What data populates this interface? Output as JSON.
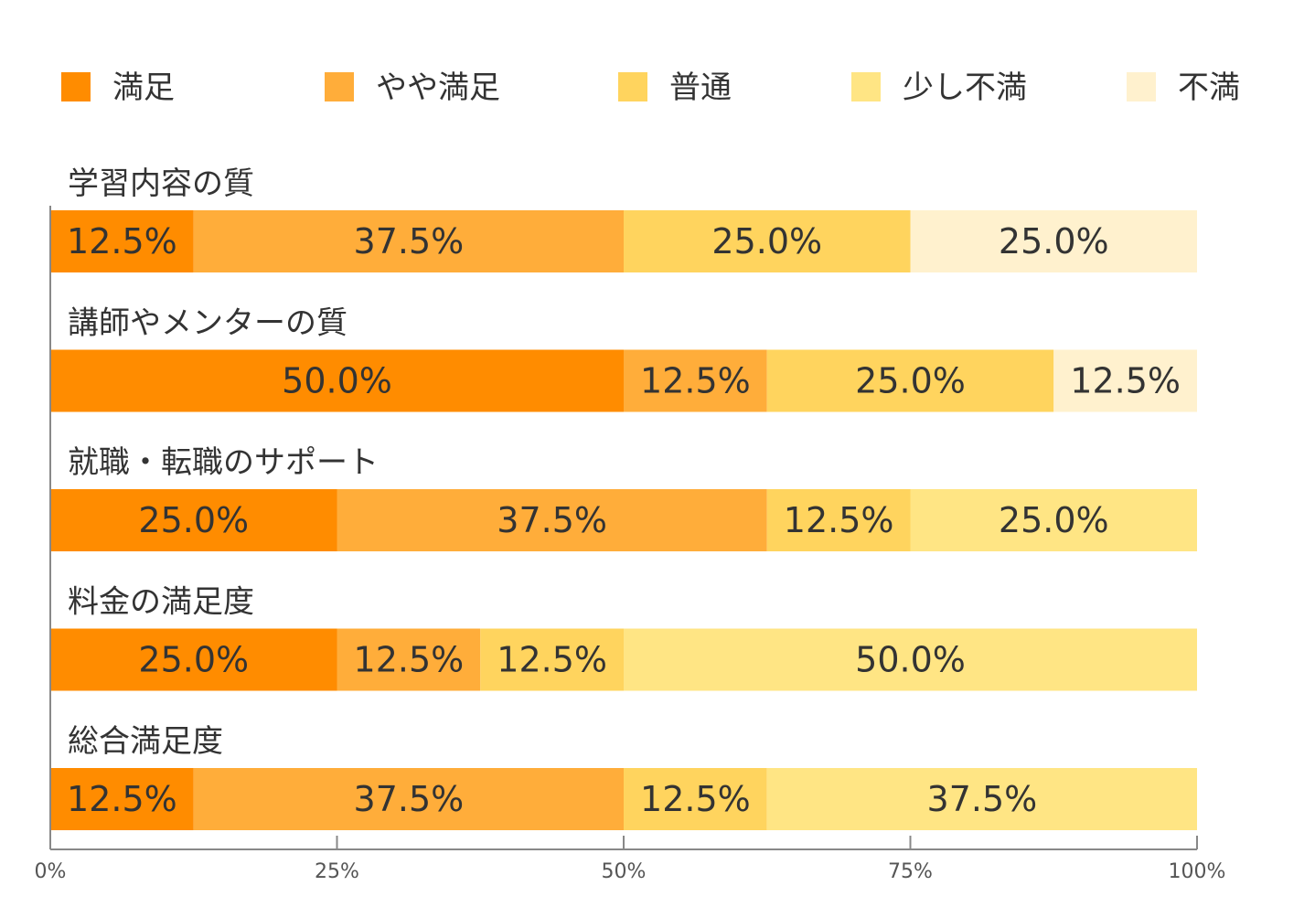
{
  "chart_data": {
    "type": "bar",
    "orientation": "horizontal",
    "stacked": true,
    "percent_scale": true,
    "legend_position": "top",
    "categories": [
      "学習内容の質",
      "講師やメンターの質",
      "就職・転職のサポート",
      "料金の満足度",
      "総合満足度"
    ],
    "series": [
      {
        "name": "満足",
        "color": "#FF8C00",
        "values": [
          12.5,
          50.0,
          25.0,
          25.0,
          12.5
        ]
      },
      {
        "name": "やや満足",
        "color": "#FFAD3A",
        "values": [
          37.5,
          12.5,
          37.5,
          12.5,
          37.5
        ]
      },
      {
        "name": "普通",
        "color": "#FFD45E",
        "values": [
          25.0,
          25.0,
          12.5,
          12.5,
          12.5
        ]
      },
      {
        "name": "少し不満",
        "color": "#FFE584",
        "values": [
          0,
          0,
          25.0,
          50.0,
          37.5
        ]
      },
      {
        "name": "不満",
        "color": "#FFF1CE",
        "values": [
          25.0,
          12.5,
          0,
          0,
          0
        ]
      }
    ],
    "data_labels": [
      [
        "12.5%",
        "50.0%",
        "25.0%",
        "25.0%",
        "12.5%"
      ],
      [
        "37.5%",
        "12.5%",
        "37.5%",
        "12.5%",
        "37.5%"
      ],
      [
        "25.0%",
        "25.0%",
        "12.5%",
        "12.5%",
        "12.5%"
      ],
      [
        "",
        "",
        "25.0%",
        "50.0%",
        "37.5%"
      ],
      [
        "25.0%",
        "12.5%",
        "",
        "",
        ""
      ]
    ],
    "xlim": [
      0,
      100
    ],
    "xticks": [
      0,
      25,
      50,
      75,
      100
    ],
    "xtick_labels": [
      "0%",
      "25%",
      "50%",
      "75%",
      "100%"
    ],
    "grid": false,
    "title": "",
    "xlabel": "",
    "ylabel": ""
  }
}
